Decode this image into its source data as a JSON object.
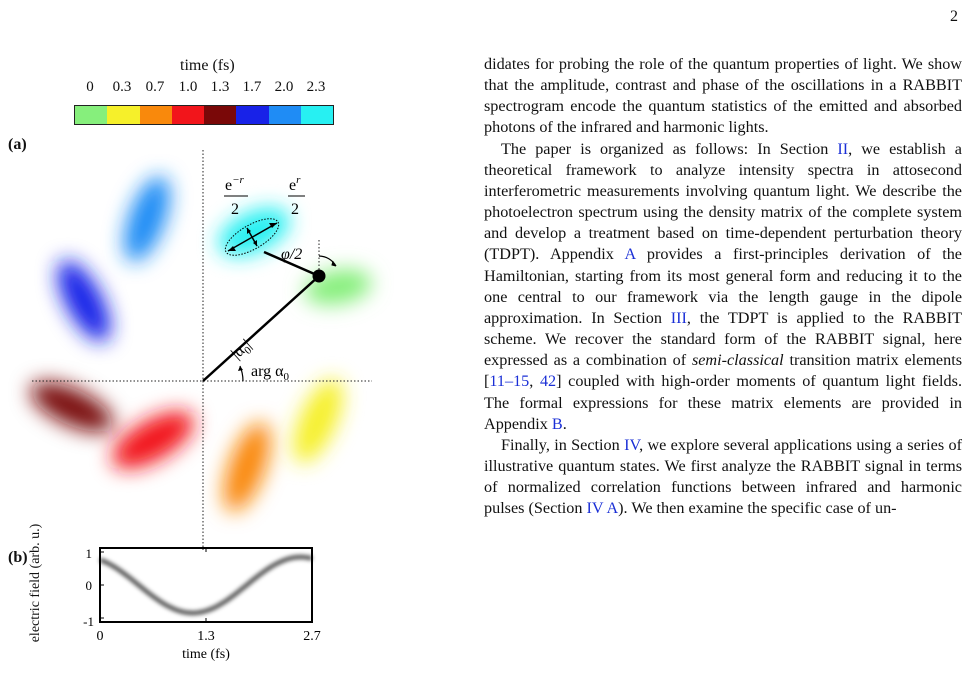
{
  "page_number": "2",
  "figure": {
    "colorbar": {
      "title": "time (fs)",
      "ticks": [
        "0",
        "0.3",
        "0.7",
        "1.0",
        "1.3",
        "1.7",
        "2.0",
        "2.3"
      ],
      "colors": [
        "#86ef7c",
        "#f6f02a",
        "#f9890c",
        "#f2151b",
        "#7a0808",
        "#1822e8",
        "#1f8cf5",
        "#27f0f2"
      ]
    },
    "panel_a": {
      "label": "(a)",
      "squeeze_minor": "e",
      "squeeze_minor_exp": "−r",
      "squeeze_major": "e",
      "squeeze_major_exp": "r",
      "denominator": "2",
      "phase_label": "φ/2",
      "amplitude_label": "|α",
      "amplitude_sub": "0",
      "arg_label": "arg α",
      "arg_sub": "0"
    },
    "panel_b": {
      "label": "(b)",
      "ylabel": "electric field (arb. u.)",
      "xlabel": "time (fs)",
      "yticks": [
        "1",
        "0",
        "-1"
      ],
      "xticks": [
        "0",
        "1.3",
        "2.7"
      ]
    }
  },
  "text": {
    "p1": "didates for probing the role of the quantum properties of light. We show that the amplitude, contrast and phase of the oscillations in a RABBIT spectrogram encode the quantum statistics of the emitted and absorbed photons of the infrared and harmonic lights.",
    "p2_a": "The paper is organized as follows: In Section ",
    "p2_ref_sec2": "II",
    "p2_b": ", we establish a theoretical framework to analyze intensity spectra in attosecond interferometric measurements involving quantum light. We describe the photoelectron spectrum using the density matrix of the complete system and develop a treatment based on time-dependent perturbation theory (TDPT). Appendix ",
    "p2_ref_appA": "A",
    "p2_c": " provides a first-principles derivation of the Hamiltonian, starting from its most general form and reducing it to the one central to our framework via the length gauge in the dipole approximation. In Section ",
    "p2_ref_sec3": "III",
    "p2_d": ", the TDPT is applied to the RABBIT scheme. We recover the standard form of the RABBIT signal, here expressed as a combination of ",
    "p2_semiclassical": "semi-classical",
    "p2_e": " transition matrix elements [",
    "p2_ref_cite1": "11",
    "p2_dash": "–",
    "p2_ref_cite2": "15",
    "p2_comma": ", ",
    "p2_ref_cite3": "42",
    "p2_f": "] coupled with high-order moments of quantum light fields. The formal expressions for these matrix elements are provided in Appendix ",
    "p2_ref_appB": "B",
    "p2_g": ".",
    "p3_a": "Finally, in Section ",
    "p3_ref_sec4": "IV",
    "p3_b": ", we explore several applications using a series of illustrative quantum states. We first analyze the RABBIT signal in terms of normalized correlation functions between infrared and harmonic pulses (Section ",
    "p3_ref_sec4a": "IV A",
    "p3_c": "). We then examine the specific case of un-"
  }
}
